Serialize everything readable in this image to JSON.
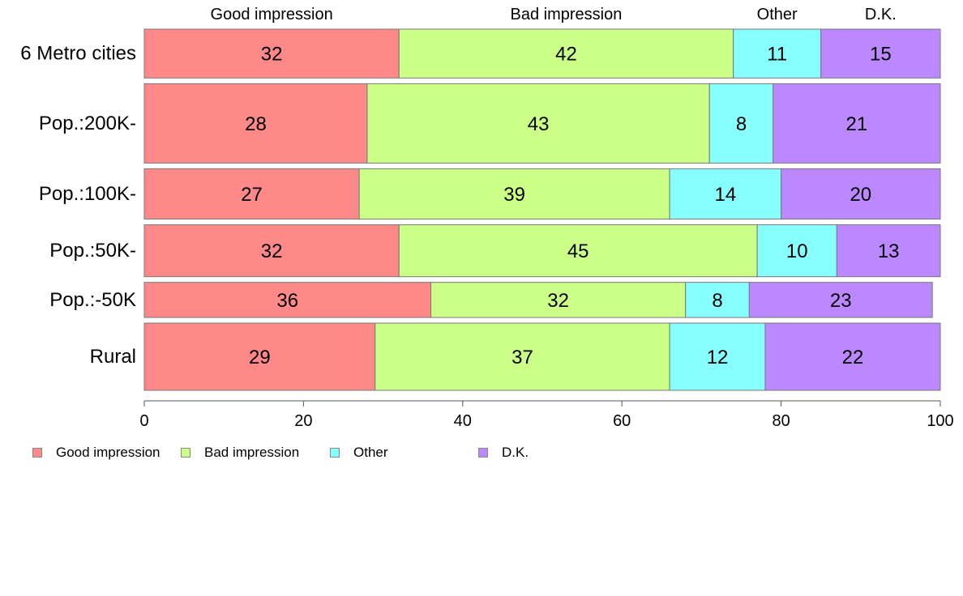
{
  "chart_data": {
    "type": "bar",
    "orientation": "horizontal",
    "stacked": true,
    "categories": [
      "6 Metro cities",
      "Pop.:200K-",
      "Pop.:100K-",
      "Pop.:50K-",
      "Pop.:-50K",
      "Rural"
    ],
    "series": [
      {
        "name": "Good impression",
        "color": "#ff8888",
        "values": [
          32,
          28,
          27,
          32,
          36,
          29
        ]
      },
      {
        "name": "Bad impression",
        "color": "#ccff88",
        "values": [
          42,
          43,
          39,
          45,
          32,
          37
        ]
      },
      {
        "name": "Other",
        "color": "#88ffff",
        "values": [
          11,
          8,
          14,
          10,
          8,
          12
        ]
      },
      {
        "name": "D.K.",
        "color": "#bb88ff",
        "values": [
          15,
          21,
          20,
          13,
          23,
          22
        ]
      }
    ],
    "category_weights": [
      32,
      52,
      33,
      34,
      23,
      44
    ],
    "xlim": [
      0,
      100
    ],
    "x_ticks": [
      0,
      20,
      40,
      60,
      80,
      100
    ],
    "title": "",
    "xlabel": "",
    "ylabel": "",
    "grid": false,
    "legend_position": "bottom-left",
    "column_headers": [
      "Good impression",
      "Bad impression",
      "Other",
      "D.K."
    ]
  }
}
